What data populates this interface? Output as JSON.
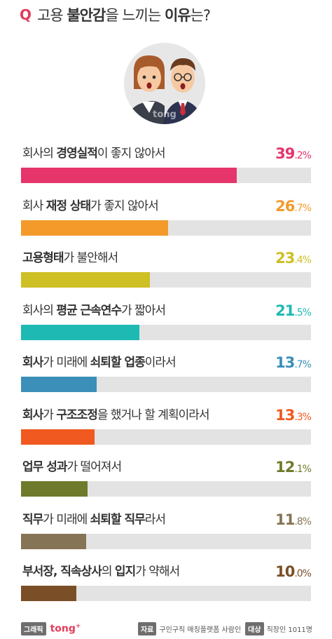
{
  "header": {
    "q_letter": "Q",
    "title_pre": "고용 ",
    "title_bold1": "불안감",
    "title_mid": "을 느끼는 ",
    "title_bold2": "이유",
    "title_post": "는?"
  },
  "illustration": {
    "watermark": "tong"
  },
  "chart_data": {
    "type": "bar",
    "orientation": "horizontal",
    "xlim": [
      0,
      100
    ],
    "unit": "%",
    "categories": [
      "회사의 경영실적이 좋지 않아서",
      "회사 재정 상태가 좋지 않아서",
      "고용형태가 불안해서",
      "회사의 평균 근속연수가 짧아서",
      "회사가 미래에 쇠퇴할 업종이라서",
      "회사가 구조조정을 했거나 할 계획이라서",
      "업무 성과가 떨어져서",
      "직무가 미래에 쇠퇴할 직무라서",
      "부서장, 직속상사의 입지가 약해서"
    ],
    "values": [
      39.2,
      26.7,
      23.4,
      21.5,
      13.7,
      13.3,
      12.1,
      11.8,
      10.0
    ],
    "bars": [
      {
        "segments": [
          {
            "t": "회사의 ",
            "b": false
          },
          {
            "t": "경영실적",
            "b": true
          },
          {
            "t": "이 좋지 않아서",
            "b": false
          }
        ],
        "int": "39",
        "dec": ".2%",
        "color": "#e5356b"
      },
      {
        "segments": [
          {
            "t": "회사 ",
            "b": false
          },
          {
            "t": "재정 상태",
            "b": true
          },
          {
            "t": "가 좋지 않아서",
            "b": false
          }
        ],
        "int": "26",
        "dec": ".7%",
        "color": "#f39a2b"
      },
      {
        "segments": [
          {
            "t": "고용형태",
            "b": true
          },
          {
            "t": "가 불안해서",
            "b": false
          }
        ],
        "int": "23",
        "dec": ".4%",
        "color": "#cdbf24"
      },
      {
        "segments": [
          {
            "t": "회사의 ",
            "b": false
          },
          {
            "t": "평균 근속연수",
            "b": true
          },
          {
            "t": "가 짧아서",
            "b": false
          }
        ],
        "int": "21",
        "dec": ".5%",
        "color": "#1fb9b3"
      },
      {
        "segments": [
          {
            "t": "회사",
            "b": true
          },
          {
            "t": "가 미래에 ",
            "b": false
          },
          {
            "t": "쇠퇴할 업종",
            "b": true
          },
          {
            "t": "이라서",
            "b": false
          }
        ],
        "int": "13",
        "dec": ".7%",
        "color": "#3b8fb9"
      },
      {
        "segments": [
          {
            "t": "회사",
            "b": true
          },
          {
            "t": "가 ",
            "b": false
          },
          {
            "t": "구조조정",
            "b": true
          },
          {
            "t": "을 했거나 할 계획이라서",
            "b": false
          }
        ],
        "int": "13",
        "dec": ".3%",
        "color": "#f0591f"
      },
      {
        "segments": [
          {
            "t": "업무 성과",
            "b": true
          },
          {
            "t": "가 떨어져서",
            "b": false
          }
        ],
        "int": "12",
        "dec": ".1%",
        "color": "#6f7a2c"
      },
      {
        "segments": [
          {
            "t": "직무",
            "b": true
          },
          {
            "t": "가 미래에 ",
            "b": false
          },
          {
            "t": "쇠퇴할 직무",
            "b": true
          },
          {
            "t": "라서",
            "b": false
          }
        ],
        "int": "11",
        "dec": ".8%",
        "color": "#857455"
      },
      {
        "segments": [
          {
            "t": "부서장, 직속상사",
            "b": true
          },
          {
            "t": "의 ",
            "b": false
          },
          {
            "t": "입지",
            "b": true
          },
          {
            "t": "가 약해서",
            "b": false
          }
        ],
        "int": "10",
        "dec": ".0%",
        "color": "#7a4f27"
      }
    ]
  },
  "footer": {
    "graphic_tag": "그래픽",
    "brand": "tong",
    "brand_plus": "+",
    "source_tag": "자료",
    "source": "구인구직 매칭플랫폼 사람인",
    "target_tag": "대상",
    "target": "직장인 1011명"
  }
}
